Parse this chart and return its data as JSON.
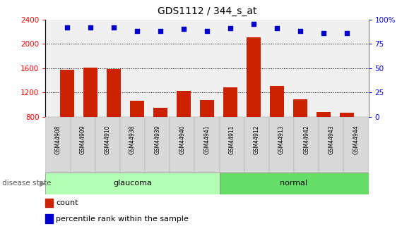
{
  "title": "GDS1112 / 344_s_at",
  "samples": [
    "GSM44908",
    "GSM44909",
    "GSM44910",
    "GSM44938",
    "GSM44939",
    "GSM44940",
    "GSM44941",
    "GSM44911",
    "GSM44912",
    "GSM44913",
    "GSM44942",
    "GSM44943",
    "GSM44944"
  ],
  "count_values": [
    1570,
    1610,
    1580,
    1060,
    950,
    1220,
    1070,
    1280,
    2110,
    1310,
    1090,
    880,
    860
  ],
  "percentile_values": [
    92,
    92,
    92,
    88,
    88,
    90,
    88,
    91,
    95,
    91,
    88,
    86,
    86
  ],
  "groups": [
    "glaucoma",
    "glaucoma",
    "glaucoma",
    "glaucoma",
    "glaucoma",
    "glaucoma",
    "glaucoma",
    "normal",
    "normal",
    "normal",
    "normal",
    "normal",
    "normal"
  ],
  "glaucoma_color": "#b3ffb3",
  "normal_color": "#66dd66",
  "bar_color": "#cc2200",
  "dot_color": "#0000cc",
  "ylim_left": [
    800,
    2400
  ],
  "ylim_right": [
    0,
    100
  ],
  "yticks_left": [
    800,
    1200,
    1600,
    2000,
    2400
  ],
  "yticks_right": [
    0,
    25,
    50,
    75,
    100
  ],
  "grid_values": [
    1200,
    1600,
    2000
  ],
  "bar_width": 0.6,
  "background_color": "#ffffff",
  "plot_bg": "#f0f0f0"
}
